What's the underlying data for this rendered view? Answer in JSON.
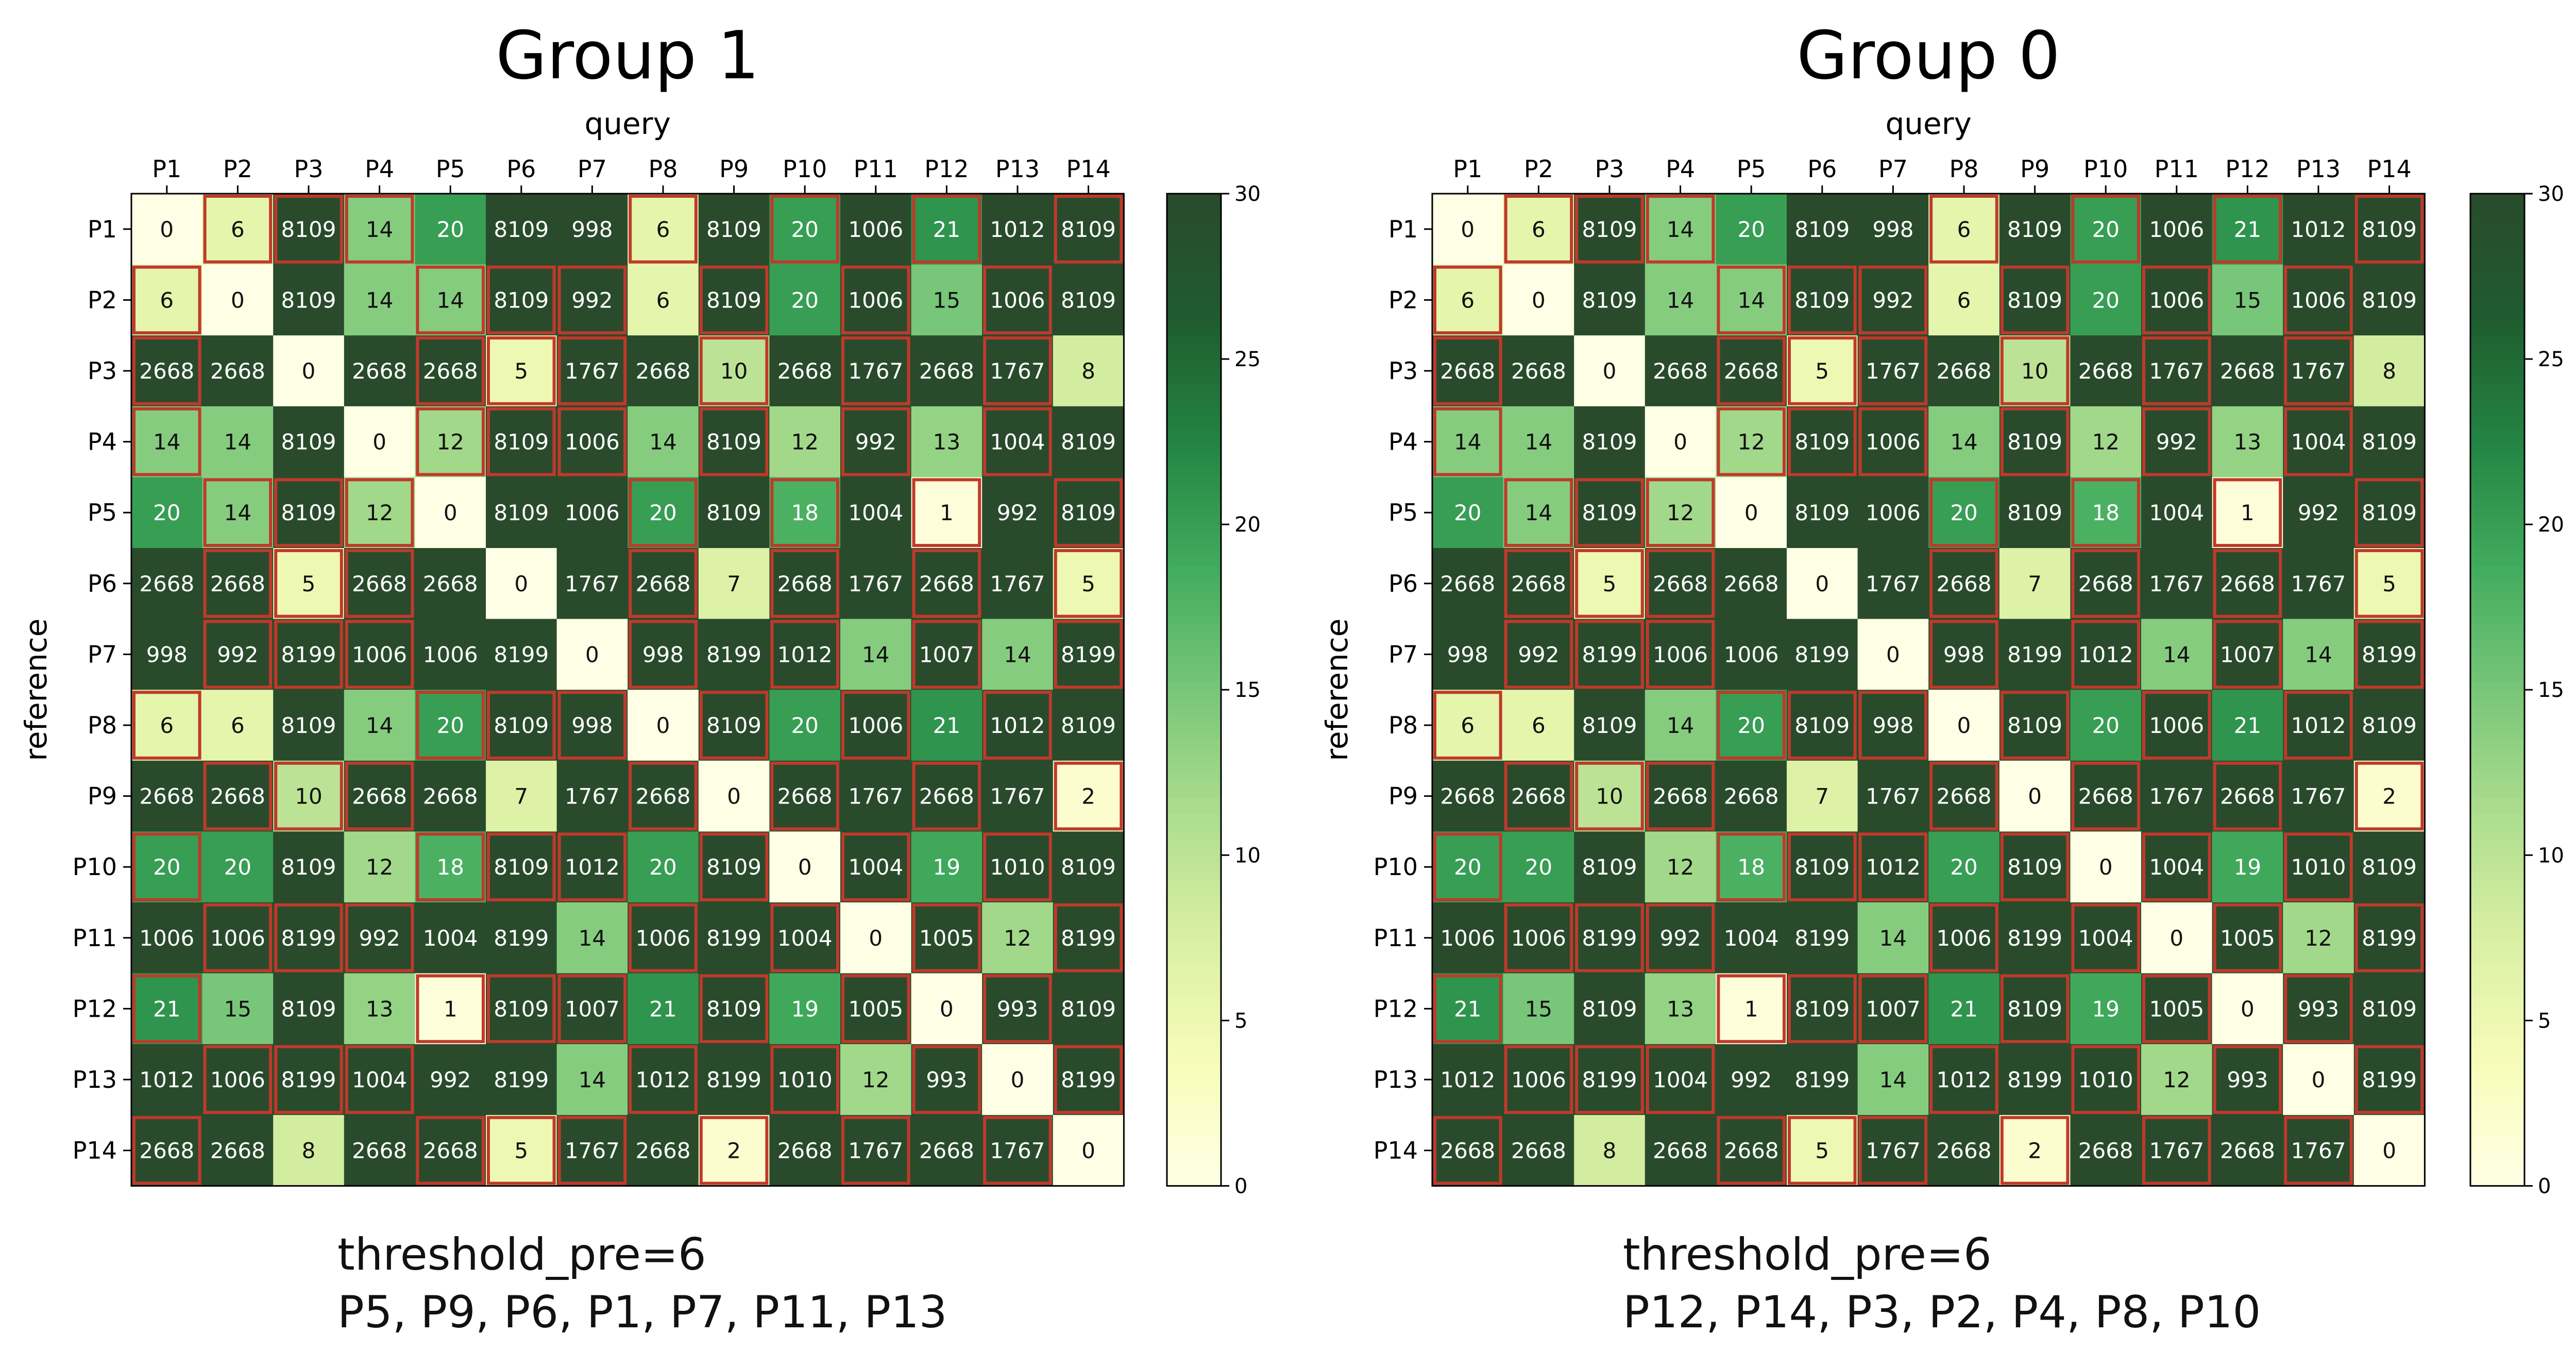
{
  "chart_data": [
    {
      "type": "heatmap",
      "title": "Group 1",
      "xlabel": "query",
      "ylabel": "reference",
      "x_categories": [
        "P1",
        "P2",
        "P3",
        "P4",
        "P5",
        "P6",
        "P7",
        "P8",
        "P9",
        "P10",
        "P11",
        "P12",
        "P13",
        "P14"
      ],
      "y_categories": [
        "P1",
        "P2",
        "P3",
        "P4",
        "P5",
        "P6",
        "P7",
        "P8",
        "P9",
        "P10",
        "P11",
        "P12",
        "P13",
        "P14"
      ],
      "values": [
        [
          0,
          6,
          8109,
          14,
          20,
          8109,
          998,
          6,
          8109,
          20,
          1006,
          21,
          1012,
          8109
        ],
        [
          6,
          0,
          8109,
          14,
          14,
          8109,
          992,
          6,
          8109,
          20,
          1006,
          15,
          1006,
          8109
        ],
        [
          2668,
          2668,
          0,
          2668,
          2668,
          5,
          1767,
          2668,
          10,
          2668,
          1767,
          2668,
          1767,
          8
        ],
        [
          14,
          14,
          8109,
          0,
          12,
          8109,
          1006,
          14,
          8109,
          12,
          992,
          13,
          1004,
          8109
        ],
        [
          20,
          14,
          8109,
          12,
          0,
          8109,
          1006,
          20,
          8109,
          18,
          1004,
          1,
          992,
          8109
        ],
        [
          2668,
          2668,
          5,
          2668,
          2668,
          0,
          1767,
          2668,
          7,
          2668,
          1767,
          2668,
          1767,
          5
        ],
        [
          998,
          992,
          8199,
          1006,
          1006,
          8199,
          0,
          998,
          8199,
          1012,
          14,
          1007,
          14,
          8199
        ],
        [
          6,
          6,
          8109,
          14,
          20,
          8109,
          998,
          0,
          8109,
          20,
          1006,
          21,
          1012,
          8109
        ],
        [
          2668,
          2668,
          10,
          2668,
          2668,
          7,
          1767,
          2668,
          0,
          2668,
          1767,
          2668,
          1767,
          2
        ],
        [
          20,
          20,
          8109,
          12,
          18,
          8109,
          1012,
          20,
          8109,
          0,
          1004,
          19,
          1010,
          8109
        ],
        [
          1006,
          1006,
          8199,
          992,
          1004,
          8199,
          14,
          1006,
          8199,
          1004,
          0,
          1005,
          12,
          8199
        ],
        [
          21,
          15,
          8109,
          13,
          1,
          8109,
          1007,
          21,
          8109,
          19,
          1005,
          0,
          993,
          8109
        ],
        [
          1012,
          1006,
          8199,
          1004,
          992,
          8199,
          14,
          1012,
          8199,
          1010,
          12,
          993,
          0,
          8199
        ],
        [
          2668,
          2668,
          8,
          2668,
          2668,
          5,
          1767,
          2668,
          2,
          2668,
          1767,
          2668,
          1767,
          0
        ]
      ],
      "highlighted_rows": [
        "P1",
        "P5",
        "P6",
        "P7",
        "P9",
        "P11",
        "P13"
      ],
      "highlighted_cols": [
        "P1",
        "P5",
        "P6",
        "P7",
        "P9",
        "P11",
        "P13"
      ],
      "colorbar": {
        "min": 0,
        "max": 30,
        "ticks": [
          0,
          5,
          10,
          15,
          20,
          25,
          30
        ]
      },
      "caption_lines": [
        "threshold_pre=6",
        "P5, P9, P6, P1, P7, P11, P13"
      ]
    },
    {
      "type": "heatmap",
      "title": "Group 0",
      "xlabel": "query",
      "ylabel": "reference",
      "x_categories": [
        "P1",
        "P2",
        "P3",
        "P4",
        "P5",
        "P6",
        "P7",
        "P8",
        "P9",
        "P10",
        "P11",
        "P12",
        "P13",
        "P14"
      ],
      "y_categories": [
        "P1",
        "P2",
        "P3",
        "P4",
        "P5",
        "P6",
        "P7",
        "P8",
        "P9",
        "P10",
        "P11",
        "P12",
        "P13",
        "P14"
      ],
      "values": [
        [
          0,
          6,
          8109,
          14,
          20,
          8109,
          998,
          6,
          8109,
          20,
          1006,
          21,
          1012,
          8109
        ],
        [
          6,
          0,
          8109,
          14,
          14,
          8109,
          992,
          6,
          8109,
          20,
          1006,
          15,
          1006,
          8109
        ],
        [
          2668,
          2668,
          0,
          2668,
          2668,
          5,
          1767,
          2668,
          10,
          2668,
          1767,
          2668,
          1767,
          8
        ],
        [
          14,
          14,
          8109,
          0,
          12,
          8109,
          1006,
          14,
          8109,
          12,
          992,
          13,
          1004,
          8109
        ],
        [
          20,
          14,
          8109,
          12,
          0,
          8109,
          1006,
          20,
          8109,
          18,
          1004,
          1,
          992,
          8109
        ],
        [
          2668,
          2668,
          5,
          2668,
          2668,
          0,
          1767,
          2668,
          7,
          2668,
          1767,
          2668,
          1767,
          5
        ],
        [
          998,
          992,
          8199,
          1006,
          1006,
          8199,
          0,
          998,
          8199,
          1012,
          14,
          1007,
          14,
          8199
        ],
        [
          6,
          6,
          8109,
          14,
          20,
          8109,
          998,
          0,
          8109,
          20,
          1006,
          21,
          1012,
          8109
        ],
        [
          2668,
          2668,
          10,
          2668,
          2668,
          7,
          1767,
          2668,
          0,
          2668,
          1767,
          2668,
          1767,
          2
        ],
        [
          20,
          20,
          8109,
          12,
          18,
          8109,
          1012,
          20,
          8109,
          0,
          1004,
          19,
          1010,
          8109
        ],
        [
          1006,
          1006,
          8199,
          992,
          1004,
          8199,
          14,
          1006,
          8199,
          1004,
          0,
          1005,
          12,
          8199
        ],
        [
          21,
          15,
          8109,
          13,
          1,
          8109,
          1007,
          21,
          8109,
          19,
          1005,
          0,
          993,
          8109
        ],
        [
          1012,
          1006,
          8199,
          1004,
          992,
          8199,
          14,
          1012,
          8199,
          1010,
          12,
          993,
          0,
          8199
        ],
        [
          2668,
          2668,
          8,
          2668,
          2668,
          5,
          1767,
          2668,
          2,
          2668,
          1767,
          2668,
          1767,
          0
        ]
      ],
      "highlighted_rows": [
        "P2",
        "P3",
        "P4",
        "P8",
        "P10",
        "P12",
        "P14"
      ],
      "highlighted_cols": [
        "P2",
        "P3",
        "P4",
        "P8",
        "P10",
        "P12",
        "P14"
      ],
      "colorbar": {
        "min": 0,
        "max": 30,
        "ticks": [
          0,
          5,
          10,
          15,
          20,
          25,
          30
        ]
      },
      "caption_lines": [
        "threshold_pre=6",
        "P12, P14, P3, P2, P4, P8, P10"
      ]
    }
  ],
  "colors": {
    "highlight_border": "#c0392b",
    "cell_text_light": "#ffffff",
    "cell_text_dark": "#111111",
    "colormap": [
      "#ffffe5",
      "#f7fcb9",
      "#d9f0a3",
      "#addd8e",
      "#78c679",
      "#41ab5d",
      "#238443",
      "#1f5c2e",
      "#294b2c"
    ]
  }
}
